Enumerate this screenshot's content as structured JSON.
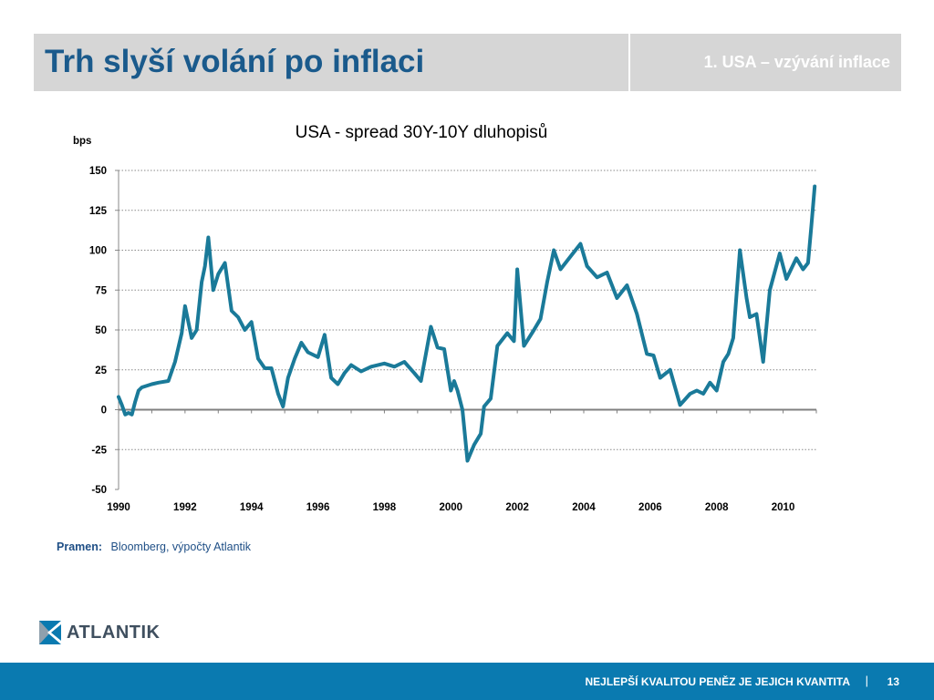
{
  "slide": {
    "title": "Trh slyší volání po inflaci",
    "section": "1. USA – vzývání inflace"
  },
  "source": {
    "label": "Pramen:",
    "text": "Bloomberg, výpočty Atlantik"
  },
  "logo": {
    "name": "ATLANTIK"
  },
  "footer": {
    "slogan": "NEJLEPŠÍ KVALITOU PENĚZ JE JEJICH KVANTITA",
    "separator": "|",
    "page": "13"
  },
  "colors": {
    "header_bg": "#d6d6d6",
    "title": "#1a5a8c",
    "series": "#1a7a99",
    "footer_bg": "#0a7ab0"
  },
  "chart_data": {
    "type": "line",
    "title": "USA - spread 30Y-10Y dluhopisů",
    "ylabel": "bps",
    "xlabel": "",
    "ylim": [
      -50,
      150
    ],
    "yticks": [
      150,
      125,
      100,
      75,
      50,
      25,
      0,
      -25,
      -50
    ],
    "xlim": [
      1990.0,
      2011.0
    ],
    "xticks": [
      "1990",
      "1992",
      "1994",
      "1996",
      "1998",
      "2000",
      "2002",
      "2004",
      "2006",
      "2008",
      "2010"
    ],
    "grid": "horizontal dotted",
    "series": [
      {
        "color": "#1a7a99",
        "x": [
          1990.0,
          1990.1,
          1990.2,
          1990.3,
          1990.4,
          1990.5,
          1990.6,
          1990.7,
          1991.0,
          1991.2,
          1991.5,
          1991.7,
          1991.9,
          1992.0,
          1992.2,
          1992.35,
          1992.5,
          1992.6,
          1992.7,
          1992.85,
          1993.0,
          1993.2,
          1993.4,
          1993.6,
          1993.8,
          1994.0,
          1994.2,
          1994.4,
          1994.6,
          1994.8,
          1994.95,
          1995.1,
          1995.3,
          1995.5,
          1995.7,
          1996.0,
          1996.2,
          1996.4,
          1996.6,
          1996.8,
          1997.0,
          1997.3,
          1997.6,
          1998.0,
          1998.3,
          1998.6,
          1998.9,
          1999.1,
          1999.4,
          1999.6,
          1999.8,
          2000.0,
          2000.1,
          2000.2,
          2000.35,
          2000.5,
          2000.7,
          2000.9,
          2001.0,
          2001.2,
          2001.4,
          2001.7,
          2001.9,
          2002.0,
          2002.2,
          2002.5,
          2002.7,
          2002.9,
          2003.1,
          2003.3,
          2003.6,
          2003.9,
          2004.1,
          2004.4,
          2004.7,
          2005.0,
          2005.3,
          2005.6,
          2005.9,
          2006.1,
          2006.3,
          2006.6,
          2006.9,
          2007.2,
          2007.4,
          2007.6,
          2007.8,
          2008.0,
          2008.2,
          2008.35,
          2008.5,
          2008.7,
          2008.9,
          2009.0,
          2009.2,
          2009.4,
          2009.6,
          2009.9,
          2010.1,
          2010.4,
          2010.6,
          2010.75,
          2010.85,
          2010.95
        ],
        "y": [
          8,
          3,
          -3,
          -2,
          -3,
          5,
          12,
          14,
          16,
          17,
          18,
          30,
          48,
          65,
          45,
          50,
          80,
          90,
          108,
          75,
          85,
          92,
          62,
          58,
          50,
          55,
          32,
          26,
          26,
          10,
          2,
          20,
          32,
          42,
          36,
          33,
          47,
          20,
          16,
          23,
          28,
          24,
          27,
          29,
          27,
          30,
          23,
          18,
          52,
          39,
          38,
          12,
          18,
          12,
          0,
          -32,
          -22,
          -15,
          2,
          7,
          40,
          48,
          43,
          88,
          40,
          50,
          57,
          80,
          100,
          88,
          96,
          104,
          90,
          83,
          86,
          70,
          78,
          60,
          35,
          34,
          20,
          25,
          3,
          10,
          12,
          10,
          17,
          12,
          30,
          35,
          45,
          100,
          70,
          58,
          60,
          30,
          75,
          98,
          82,
          95,
          88,
          92,
          115,
          140
        ]
      }
    ]
  }
}
